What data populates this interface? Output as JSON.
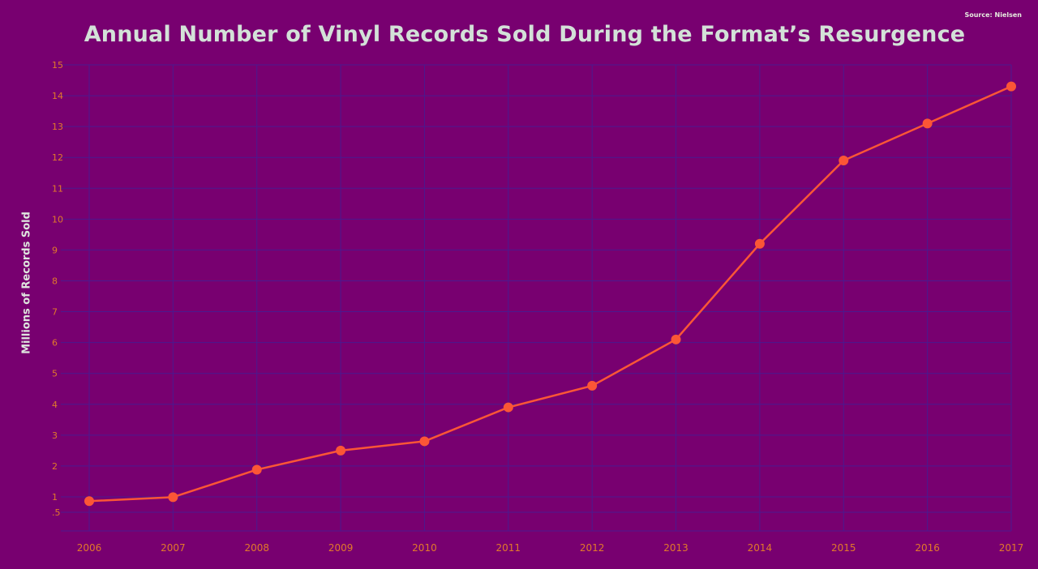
{
  "source_note": "Source: Nielsen",
  "chart_data": {
    "type": "line",
    "title": "Annual Number of Vinyl Records Sold During the Format’s Resurgence",
    "xlabel": "",
    "ylabel": "Millions of Records Sold",
    "x": [
      "2006",
      "2007",
      "2008",
      "2009",
      "2010",
      "2011",
      "2012",
      "2013",
      "2014",
      "2015",
      "2016",
      "2017"
    ],
    "series": [
      {
        "values": [
          0.86,
          0.99,
          1.88,
          2.5,
          2.8,
          3.9,
          4.6,
          6.1,
          9.2,
          11.9,
          13.1,
          14.3
        ]
      }
    ],
    "y_ticks": [
      ".5",
      "1",
      "2",
      "3",
      "4",
      "5",
      "6",
      "7",
      "8",
      "9",
      "10",
      "11",
      "12",
      "13",
      "14",
      "15"
    ],
    "grid": true,
    "legend": "none",
    "colors": {
      "background": "#780070",
      "grid": "#4b1a8f",
      "line": "#fb5636",
      "markers": "#fb5636",
      "ticks": "#e2792a",
      "title": "#d3e1d8"
    }
  }
}
